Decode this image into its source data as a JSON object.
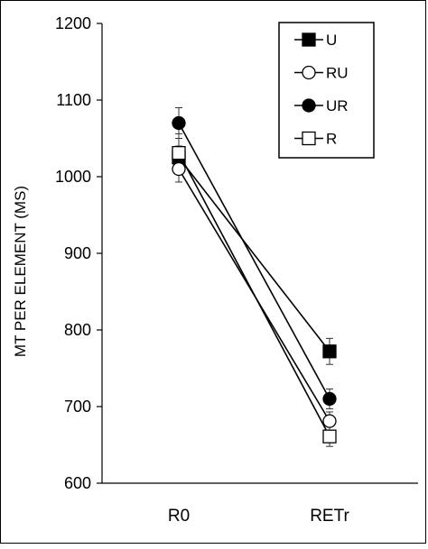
{
  "chart_data": {
    "type": "line",
    "title": "",
    "xlabel": "",
    "ylabel": "MT PER ELEMENT (MS)",
    "categories": [
      "R0",
      "RETr"
    ],
    "ylim": [
      600,
      1200
    ],
    "yticks": [
      600,
      700,
      800,
      900,
      1000,
      1100,
      1200
    ],
    "grid": false,
    "legend": "top-right",
    "series": [
      {
        "name": "U",
        "marker": "square-filled",
        "values": [
          1025,
          772
        ],
        "errors": [
          15,
          17
        ]
      },
      {
        "name": "RU",
        "marker": "circle-open",
        "values": [
          1010,
          681
        ],
        "errors": [
          17,
          12
        ]
      },
      {
        "name": "UR",
        "marker": "circle-filled",
        "values": [
          1070,
          710
        ],
        "errors": [
          20,
          13
        ]
      },
      {
        "name": "R",
        "marker": "square-open",
        "values": [
          1031,
          661
        ],
        "errors": [
          25,
          13
        ]
      }
    ],
    "colors": {
      "line": "#000000",
      "fill_dark": "#000000",
      "fill_light": "#ffffff"
    }
  }
}
